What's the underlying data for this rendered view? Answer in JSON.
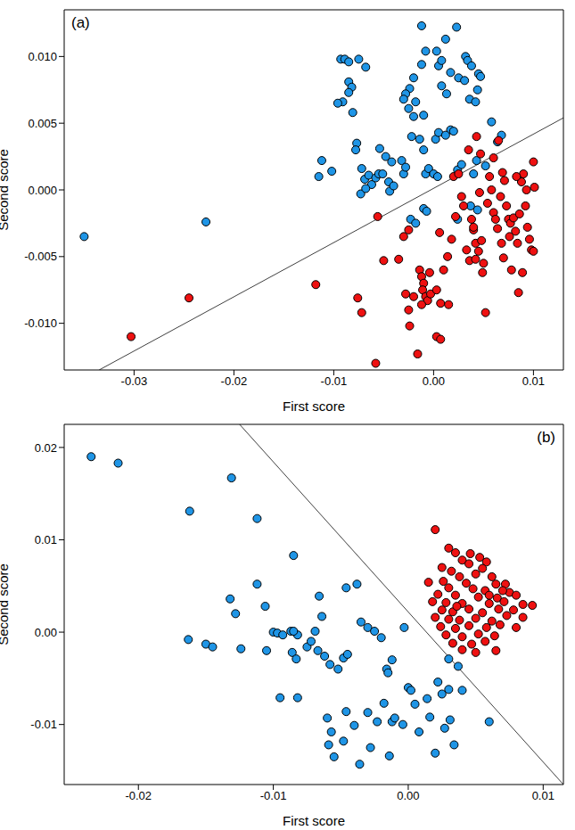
{
  "chart_data": [
    {
      "type": "scatter",
      "annotations": [
        "(a)"
      ],
      "xlabel": "First score",
      "ylabel": "Second score",
      "xlim": [
        -0.037,
        0.013
      ],
      "xticks": [
        -0.03,
        -0.02,
        -0.01,
        {
          "value": 0,
          "label": "0.00"
        },
        0.01
      ],
      "ylim": [
        -0.0135,
        0.0135
      ],
      "yticks": [
        {
          "value": -0.01,
          "label": "-0.010"
        },
        -0.005,
        {
          "value": 0,
          "label": "0.000"
        },
        0.005,
        {
          "value": 0.01,
          "label": "0.010"
        }
      ],
      "series": [
        {
          "type": "scatter",
          "marker": "circle",
          "color": "#1f95e6",
          "x": [
            -0.0093,
            -0.0089,
            -0.0085,
            -0.0075,
            -0.0068,
            -0.0085,
            -0.0082,
            -0.0085,
            -0.0091,
            -0.0096,
            -0.0081,
            -0.0012,
            0.0023,
            0.0012,
            0.0003,
            -0.0008,
            0.0032,
            0.0034,
            0.0038,
            -0.0012,
            0.0005,
            0.0008,
            0.0017,
            0.0025,
            0.0031,
            0.0045,
            0.0047,
            0.0044,
            -0.002,
            -0.0024,
            -0.0028,
            -0.003,
            -0.0018,
            0.0008,
            0.0013,
            -0.0025,
            -0.002,
            -0.001,
            0.0017,
            0.002,
            0.0036,
            0.0042,
            0.0058,
            0.0068,
            0.0064,
            -0.0022,
            -0.0014,
            0.0002,
            0.0005,
            0.0012,
            -0.0112,
            -0.0115,
            -0.0102,
            -0.0077,
            -0.0078,
            -0.0072,
            -0.0069,
            -0.0065,
            -0.0062,
            -0.0058,
            -0.0055,
            -0.0051,
            -0.0054,
            -0.0048,
            -0.0045,
            -0.0044,
            -0.004,
            -0.0073,
            -0.0068,
            -0.0042,
            -0.0032,
            -0.003,
            -0.0028,
            -0.001,
            -0.0008,
            -0.0005,
            0.0,
            0.0004,
            -0.001,
            -0.0007,
            -0.0023,
            -0.0018,
            0.0024,
            0.0028,
            0.0043,
            0.0052,
            0.004,
            0.0037,
            0.0044,
            0.0024,
            -0.035,
            -0.0228
          ],
          "y": [
            0.0098,
            0.0098,
            0.0096,
            0.0098,
            0.0092,
            0.0081,
            0.0077,
            0.0073,
            0.0066,
            0.0065,
            0.0058,
            0.0123,
            0.0122,
            0.0113,
            0.0104,
            0.0104,
            0.01,
            0.0097,
            0.0093,
            0.0094,
            0.0093,
            0.0097,
            0.0088,
            0.0084,
            0.0082,
            0.0087,
            0.0085,
            0.0075,
            0.0084,
            0.0076,
            0.0072,
            0.0068,
            0.0066,
            0.0078,
            0.0072,
            0.0061,
            0.0055,
            0.0056,
            0.0045,
            0.0044,
            0.0068,
            0.0066,
            0.0051,
            0.0041,
            0.0036,
            0.004,
            0.0038,
            0.0038,
            0.0043,
            0.0041,
            0.0022,
            0.001,
            0.0014,
            0.0035,
            0.003,
            0.0016,
            0.0008,
            0.0011,
            0.0004,
            0.0009,
            0.0012,
            0.0012,
            0.0031,
            0.0025,
            0.0006,
            -0.0001,
            0.0003,
            -0.0003,
            0.0001,
            0.0021,
            0.0022,
            0.0012,
            0.0017,
            0.003,
            0.0012,
            0.0016,
            0.0012,
            0.001,
            -0.0014,
            -0.0016,
            -0.0022,
            -0.0025,
            0.0015,
            0.0019,
            0.0022,
            0.0018,
            0.0012,
            -0.0012,
            -0.0015,
            -0.0022,
            -0.0035,
            -0.0024
          ]
        },
        {
          "type": "scatter",
          "marker": "circle",
          "color": "#ee1111",
          "x": [
            -0.0303,
            -0.0245,
            -0.0118,
            -0.0056,
            -0.005,
            -0.0076,
            -0.0072,
            -0.0058,
            -0.0035,
            -0.003,
            -0.0025,
            -0.0028,
            -0.0025,
            -0.0024,
            -0.0016,
            -0.002,
            -0.0014,
            -0.0012,
            -0.001,
            -0.0011,
            -0.0008,
            -0.0006,
            -0.0012,
            -0.0003,
            0.0003,
            0.0007,
            0.0003,
            0.0007,
            0.0015,
            0.0018,
            0.002,
            0.0025,
            0.0028,
            0.003,
            0.0033,
            0.0036,
            0.004,
            0.0042,
            0.0045,
            0.0048,
            0.005,
            0.0052,
            0.0043,
            0.0047,
            0.0054,
            0.0058,
            0.006,
            0.0062,
            0.0064,
            0.0067,
            0.0069,
            0.0071,
            0.0073,
            0.0075,
            0.0077,
            0.008,
            0.0082,
            0.0084,
            0.0086,
            0.0088,
            0.009,
            0.0092,
            0.0094,
            0.0096,
            0.0098,
            0.01,
            0.0101,
            0.01,
            0.0085,
            0.0078,
            0.0076,
            0.007,
            0.0065,
            0.006,
            0.0056,
            0.0038,
            0.004,
            0.0046,
            0.0035,
            0.0068,
            0.0089,
            0.0083,
            0.0093,
            0.0014,
            0.001,
            -0.0004,
            0.0006,
            0.0022,
            0.0042,
            0.0049
          ],
          "y": [
            -0.011,
            -0.0081,
            -0.0071,
            -0.002,
            -0.0053,
            -0.0081,
            -0.0092,
            -0.013,
            -0.0052,
            -0.0035,
            -0.003,
            -0.0078,
            -0.009,
            -0.0102,
            -0.0123,
            -0.008,
            -0.006,
            -0.0065,
            -0.007,
            -0.0075,
            -0.008,
            -0.0083,
            -0.0086,
            -0.0078,
            -0.0075,
            -0.0085,
            -0.011,
            -0.0112,
            -0.0086,
            -0.0037,
            0.001,
            0.0012,
            -0.0005,
            -0.0012,
            -0.0045,
            -0.0053,
            -0.003,
            -0.004,
            -0.0046,
            -0.0038,
            -0.0055,
            -0.0092,
            0.004,
            0.0027,
            -0.001,
            0.0,
            -0.0017,
            -0.0022,
            -0.0029,
            -0.0005,
            0.0013,
            0.0007,
            -0.0012,
            -0.0022,
            -0.0025,
            -0.0021,
            -0.0031,
            -0.004,
            -0.0018,
            0.0006,
            0.0012,
            -0.0012,
            -0.0028,
            -0.0037,
            -0.0045,
            0.0021,
            0.0002,
            -0.0046,
            -0.0077,
            -0.006,
            -0.0035,
            -0.0051,
            0.0037,
            0.0024,
            0.001,
            -0.0022,
            -0.0028,
            -0.0002,
            0.003,
            -0.004,
            -0.0062,
            0.001,
            0.0,
            -0.005,
            -0.006,
            -0.0062,
            -0.0032,
            -0.002,
            -0.0052,
            -0.0062
          ]
        },
        {
          "type": "line",
          "color": "#404040",
          "x": [
            -0.0335,
            0.013
          ],
          "y": [
            -0.0135,
            0.0054
          ]
        }
      ]
    },
    {
      "type": "scatter",
      "annotations": [
        "(b)"
      ],
      "xlabel": "First score",
      "ylabel": "Second score",
      "xlim": [
        -0.0255,
        0.0115
      ],
      "xticks": [
        -0.02,
        -0.01,
        {
          "value": 0,
          "label": "0.00"
        },
        0.01
      ],
      "ylim": [
        -0.0165,
        0.0225
      ],
      "yticks": [
        -0.01,
        {
          "value": 0,
          "label": "0.00"
        },
        0.01,
        0.02
      ],
      "series": [
        {
          "type": "scatter",
          "marker": "circle",
          "color": "#1f95e6",
          "x": [
            -0.0235,
            -0.0215,
            -0.0131,
            -0.0162,
            -0.0112,
            -0.0085,
            -0.0163,
            -0.015,
            -0.0145,
            -0.0132,
            -0.0128,
            -0.0124,
            -0.0112,
            -0.0106,
            -0.01,
            -0.0097,
            -0.0093,
            -0.0087,
            -0.0082,
            -0.0086,
            -0.0083,
            -0.0095,
            -0.0082,
            -0.0069,
            -0.0066,
            -0.0064,
            -0.0067,
            -0.0062,
            -0.0058,
            -0.0052,
            -0.0048,
            -0.0045,
            -0.0046,
            -0.0038,
            -0.0035,
            -0.003,
            -0.0025,
            -0.002,
            -0.0016,
            -0.0015,
            -0.0012,
            -0.0012,
            -0.001,
            -0.0003,
            0.0,
            0.0002,
            -0.006,
            -0.0057,
            -0.0059,
            -0.0055,
            -0.0048,
            -0.0046,
            -0.004,
            -0.0036,
            -0.003,
            -0.0028,
            -0.0023,
            -0.0018,
            -0.0014,
            -0.0004,
            0.0005,
            0.0008,
            0.0014,
            0.0016,
            0.002,
            0.0022,
            0.0025,
            0.0027,
            0.003,
            0.003,
            0.0031,
            0.0034,
            0.0037,
            0.004,
            0.006,
            -0.0105,
            -0.0085,
            -0.0075,
            -0.0072
          ],
          "y": [
            0.019,
            0.0183,
            0.0167,
            0.0131,
            0.0123,
            0.0083,
            -0.0008,
            -0.0013,
            -0.0016,
            0.0036,
            0.002,
            -0.0018,
            0.0052,
            0.0028,
            0.0,
            -0.0001,
            -0.0003,
            0.0001,
            -0.0003,
            -0.0022,
            -0.0029,
            -0.0071,
            -0.0071,
            0.0001,
            0.0039,
            0.0017,
            -0.002,
            -0.0026,
            -0.0035,
            -0.004,
            -0.0028,
            -0.0024,
            0.0048,
            0.0052,
            0.0011,
            0.0005,
            0.0001,
            -0.0006,
            -0.004,
            -0.0044,
            -0.003,
            -0.0097,
            -0.0093,
            0.0005,
            -0.006,
            -0.0063,
            -0.0093,
            -0.0108,
            -0.0122,
            -0.0135,
            -0.0118,
            -0.0086,
            -0.0101,
            -0.0143,
            -0.0087,
            -0.0125,
            -0.0097,
            -0.0077,
            -0.0134,
            -0.01,
            -0.0078,
            -0.0108,
            -0.0072,
            -0.0092,
            -0.0131,
            -0.0054,
            -0.0067,
            -0.0104,
            -0.0029,
            -0.0062,
            -0.0095,
            -0.0122,
            -0.0037,
            -0.0063,
            -0.0097,
            -0.002,
            0.0001,
            -0.0016,
            -0.001
          ]
        },
        {
          "type": "scatter",
          "marker": "circle",
          "color": "#ee1111",
          "x": [
            0.002,
            0.003,
            0.0035,
            0.0046,
            0.004,
            0.0053,
            0.0045,
            0.0058,
            0.0025,
            0.0032,
            0.0055,
            0.0062,
            0.005,
            0.0038,
            0.0015,
            0.0026,
            0.0043,
            0.0065,
            0.0072,
            0.003,
            0.0048,
            0.0057,
            0.0075,
            0.0022,
            0.0035,
            0.0052,
            0.0066,
            0.008,
            0.0018,
            0.0028,
            0.004,
            0.006,
            0.0071,
            0.0085,
            0.0092,
            0.0025,
            0.0033,
            0.0045,
            0.0055,
            0.0067,
            0.0078,
            0.002,
            0.003,
            0.0038,
            0.005,
            0.0062,
            0.0073,
            0.0085,
            0.0024,
            0.0035,
            0.0045,
            0.0058,
            0.0068,
            0.008,
            0.0028,
            0.004,
            0.0052,
            0.0064,
            0.0033,
            0.0047,
            0.0057,
            0.0065,
            0.004,
            0.005,
            0.0036,
            0.006,
            0.007
          ],
          "y": [
            0.0111,
            0.0091,
            0.0086,
            0.0085,
            0.0078,
            0.0081,
            0.0074,
            0.0076,
            0.007,
            0.0066,
            0.0069,
            0.006,
            0.0063,
            0.006,
            0.0054,
            0.0055,
            0.0053,
            0.0052,
            0.0052,
            0.0048,
            0.0047,
            0.0045,
            0.0043,
            0.0041,
            0.004,
            0.0038,
            0.0037,
            0.004,
            0.0033,
            0.0032,
            0.0031,
            0.0031,
            0.0033,
            0.003,
            0.0029,
            0.0024,
            0.0022,
            0.0025,
            0.0021,
            0.0025,
            0.0024,
            0.0016,
            0.0014,
            0.0013,
            0.0015,
            0.0012,
            0.0018,
            0.0016,
            0.0006,
            0.0004,
            0.0007,
            0.0005,
            0.0008,
            0.0005,
            -0.0003,
            -0.0005,
            -0.0002,
            -0.0004,
            -0.0012,
            -0.0013,
            -0.001,
            -0.002,
            -0.0019,
            -0.0022,
            0.0028,
            0.004,
            0.0045
          ]
        },
        {
          "type": "line",
          "color": "#404040",
          "x": [
            -0.0125,
            0.0115
          ],
          "y": [
            0.0225,
            -0.0165
          ]
        }
      ]
    }
  ]
}
